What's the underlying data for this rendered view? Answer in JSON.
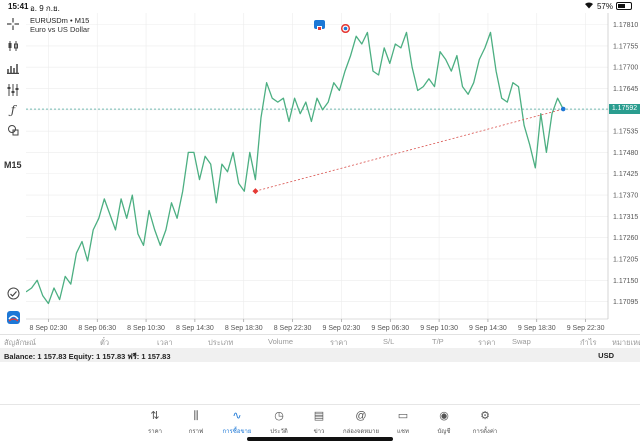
{
  "status_bar": {
    "time": "15:41",
    "date": "อ. 9 ก.ย.",
    "battery": "57%",
    "battery_level": 0.57
  },
  "toolbar": {
    "timeframe_label": "M15",
    "icons": [
      "crosshair-icon",
      "candlestick-icon",
      "bars-icon",
      "indicators-icon",
      "function-icon",
      "objects-icon"
    ],
    "bottom_icons": [
      "chart-check-icon",
      "mt5-logo-icon"
    ]
  },
  "chart": {
    "symbol_line": "EURUSDm • M15",
    "description": "Euro vs US Dollar",
    "current_price": "1.17592",
    "colors": {
      "line": "#4caf82",
      "bid_line": "#2a9d8f",
      "trend_line": "#d9534f",
      "grid": "#ececec",
      "entry_marker": "#e53935",
      "exit_marker": "#1d78d6"
    }
  },
  "chart_data": {
    "type": "line",
    "x_labels": [
      "8 Sep 02:30",
      "8 Sep 06:30",
      "8 Sep 10:30",
      "8 Sep 14:30",
      "8 Sep 18:30",
      "8 Sep 22:30",
      "9 Sep 02:30",
      "9 Sep 06:30",
      "9 Sep 10:30",
      "9 Sep 14:30",
      "9 Sep 18:30",
      "9 Sep 22:30"
    ],
    "y_ticks": [
      "1.17810",
      "1.17755",
      "1.17700",
      "1.17645",
      "1.17590",
      "1.17535",
      "1.17480",
      "1.17425",
      "1.17370",
      "1.17315",
      "1.17260",
      "1.17205",
      "1.17150",
      "1.17095"
    ],
    "ylim": [
      1.1705,
      1.1784
    ],
    "xlim": [
      0,
      52
    ],
    "current_price": 1.17592,
    "series": [
      {
        "x": [
          0,
          0.5,
          1,
          1.5,
          2,
          2.5,
          3,
          3.5,
          4,
          4.5,
          5,
          5.5,
          6,
          6.5,
          7,
          7.5,
          8,
          8.5,
          9,
          9.5,
          10,
          10.5,
          11,
          11.5,
          12,
          12.5,
          13,
          13.5,
          14,
          14.5,
          15,
          15.5,
          16,
          16.5,
          17,
          17.5,
          18,
          18.5,
          19,
          19.5,
          20,
          20.5,
          21,
          21.5,
          22,
          22.5,
          23,
          23.5,
          24,
          24.5,
          25,
          25.5,
          26,
          26.5,
          27,
          27.5,
          28,
          28.5,
          29,
          29.5,
          30,
          30.5,
          31,
          31.5,
          32,
          32.5,
          33,
          33.5,
          34,
          34.5,
          35,
          35.5,
          36,
          36.5,
          37,
          37.5,
          38,
          38.5,
          39,
          39.5,
          40,
          40.5,
          41,
          41.5,
          42,
          42.5,
          43,
          43.5,
          44,
          44.5,
          45,
          45.5,
          46,
          46.5,
          47,
          47.5,
          48
        ],
        "values": [
          1.1712,
          1.1713,
          1.1715,
          1.1711,
          1.1709,
          1.1713,
          1.171,
          1.1716,
          1.1714,
          1.1722,
          1.1725,
          1.172,
          1.1728,
          1.1731,
          1.1736,
          1.1732,
          1.1728,
          1.1736,
          1.1731,
          1.1737,
          1.1727,
          1.1724,
          1.1733,
          1.1728,
          1.1724,
          1.1728,
          1.1735,
          1.1731,
          1.1738,
          1.1748,
          1.1748,
          1.1741,
          1.1747,
          1.1745,
          1.1735,
          1.1745,
          1.1743,
          1.1748,
          1.174,
          1.1738,
          1.1748,
          1.1741,
          1.1757,
          1.1766,
          1.1762,
          1.1761,
          1.1762,
          1.1756,
          1.1762,
          1.1758,
          1.1761,
          1.1756,
          1.1762,
          1.1759,
          1.1761,
          1.1766,
          1.1764,
          1.1769,
          1.1773,
          1.1778,
          1.1776,
          1.1779,
          1.1769,
          1.1768,
          1.1775,
          1.1771,
          1.1776,
          1.1775,
          1.1779,
          1.177,
          1.1764,
          1.1765,
          1.1767,
          1.1765,
          1.1774,
          1.1772,
          1.1769,
          1.1773,
          1.1765,
          1.1763,
          1.1766,
          1.1772,
          1.1775,
          1.1779,
          1.1769,
          1.1762,
          1.1761,
          1.1766,
          1.1765,
          1.1755,
          1.175,
          1.1744,
          1.1758,
          1.1748,
          1.1758,
          1.1762,
          1.17592
        ]
      }
    ],
    "trade_line": {
      "from": [
        20.5,
        1.1738
      ],
      "to": [
        48,
        1.17592
      ]
    }
  },
  "trade_table": {
    "headers": [
      "สัญลักษณ์",
      "ตั๋ว",
      "เวลา",
      "ประเภท",
      "Volume",
      "ราคา",
      "S/L",
      "T/P",
      "ราคา",
      "Swap",
      "กำไร",
      "หมายเหตุ"
    ]
  },
  "balance": {
    "text": "Balance: 1 157.83 Equity: 1 157.83 ฟรี: 1 157.83",
    "currency": "USD"
  },
  "bottom_nav": {
    "items": [
      {
        "label": "ราคา",
        "icon": "quotes-icon",
        "glyph": "⇅"
      },
      {
        "label": "กราฟ",
        "icon": "chart-candles-icon",
        "glyph": "⫼"
      },
      {
        "label": "การซื้อขาย",
        "icon": "trade-icon",
        "glyph": "∿"
      },
      {
        "label": "ประวัติ",
        "icon": "history-icon",
        "glyph": "◷"
      },
      {
        "label": "ข่าว",
        "icon": "news-icon",
        "glyph": "▤"
      },
      {
        "label": "กล่องจดหมาย",
        "icon": "mailbox-icon",
        "glyph": "@"
      },
      {
        "label": "แชท",
        "icon": "chat-icon",
        "glyph": "▭"
      },
      {
        "label": "บัญชี",
        "icon": "account-icon",
        "glyph": "◉"
      },
      {
        "label": "การตั้งค่า",
        "icon": "settings-icon",
        "glyph": "⚙"
      }
    ],
    "active_index": 2
  }
}
